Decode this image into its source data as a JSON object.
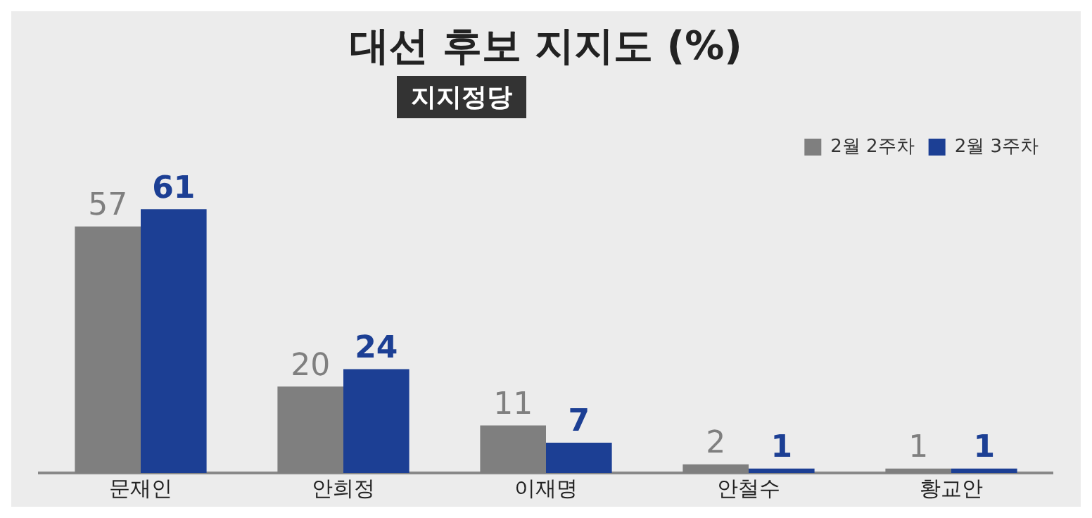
{
  "chart_data": {
    "type": "bar",
    "title": "대선 후보 지지도 (%)",
    "subtitle": "지지정당",
    "categories": [
      "문재인",
      "안희정",
      "이재명",
      "안철수",
      "황교안"
    ],
    "series": [
      {
        "name": "2월 2주차",
        "color": "#7f7f7f",
        "values": [
          57,
          20,
          11,
          2,
          1
        ]
      },
      {
        "name": "2월 3주차",
        "color": "#1c3f94",
        "values": [
          61,
          24,
          7,
          1,
          1
        ]
      }
    ],
    "data_labels": true,
    "legend": "top right",
    "grid": false
  }
}
